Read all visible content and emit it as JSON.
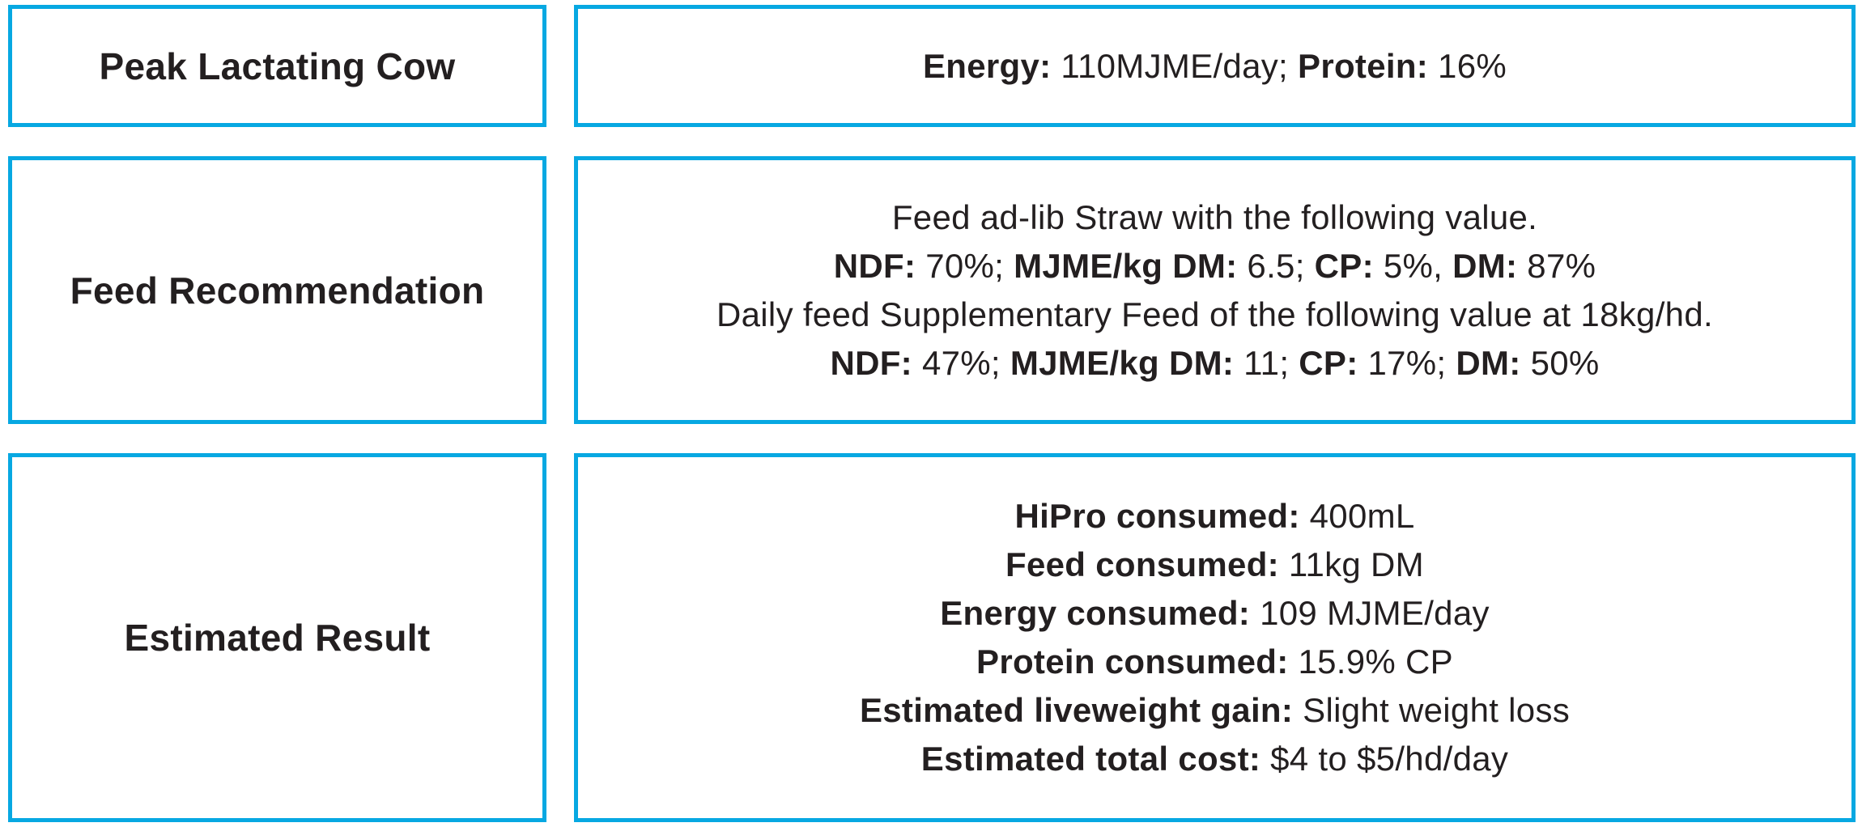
{
  "theme": {
    "accent": "#07a8e2",
    "text": "#231f20",
    "background": "#ffffff"
  },
  "table": {
    "row1": {
      "label": "Peak Lactating Cow",
      "content": {
        "energy_label": "Energy:",
        "energy_value": " 110MJME/day; ",
        "protein_label": "Protein:",
        "protein_value": " 16%"
      }
    },
    "row2": {
      "label": "Feed Recommendation",
      "content": {
        "line1": "Feed ad-lib Straw with the following value.",
        "line2": {
          "ndf_label": "NDF:",
          "ndf_value": " 70%; ",
          "mjme_label": "MJME/kg DM:",
          "mjme_value": " 6.5; ",
          "cp_label": "CP:",
          "cp_value": " 5%, ",
          "dm_label": "DM:",
          "dm_value": " 87%"
        },
        "line3": "Daily feed Supplementary Feed of the following value at 18kg/hd.",
        "line4": {
          "ndf_label": "NDF:",
          "ndf_value": " 47%; ",
          "mjme_label": "MJME/kg DM:",
          "mjme_value": " 11; ",
          "cp_label": "CP:",
          "cp_value": " 17%; ",
          "dm_label": "DM:",
          "dm_value": " 50%"
        }
      }
    },
    "row3": {
      "label": "Estimated Result",
      "content": {
        "line1": {
          "label": "HiPro consumed:",
          "value": " 400mL"
        },
        "line2": {
          "label": "Feed consumed:",
          "value": " 11kg DM"
        },
        "line3": {
          "label": "Energy consumed:",
          "value": " 109 MJME/day"
        },
        "line4": {
          "label": "Protein consumed:",
          "value": " 15.9% CP"
        },
        "line5": {
          "label": "Estimated liveweight gain:",
          "value": " Slight weight loss"
        },
        "line6": {
          "label": "Estimated total cost:",
          "value": " $4 to $5/hd/day"
        }
      }
    }
  }
}
